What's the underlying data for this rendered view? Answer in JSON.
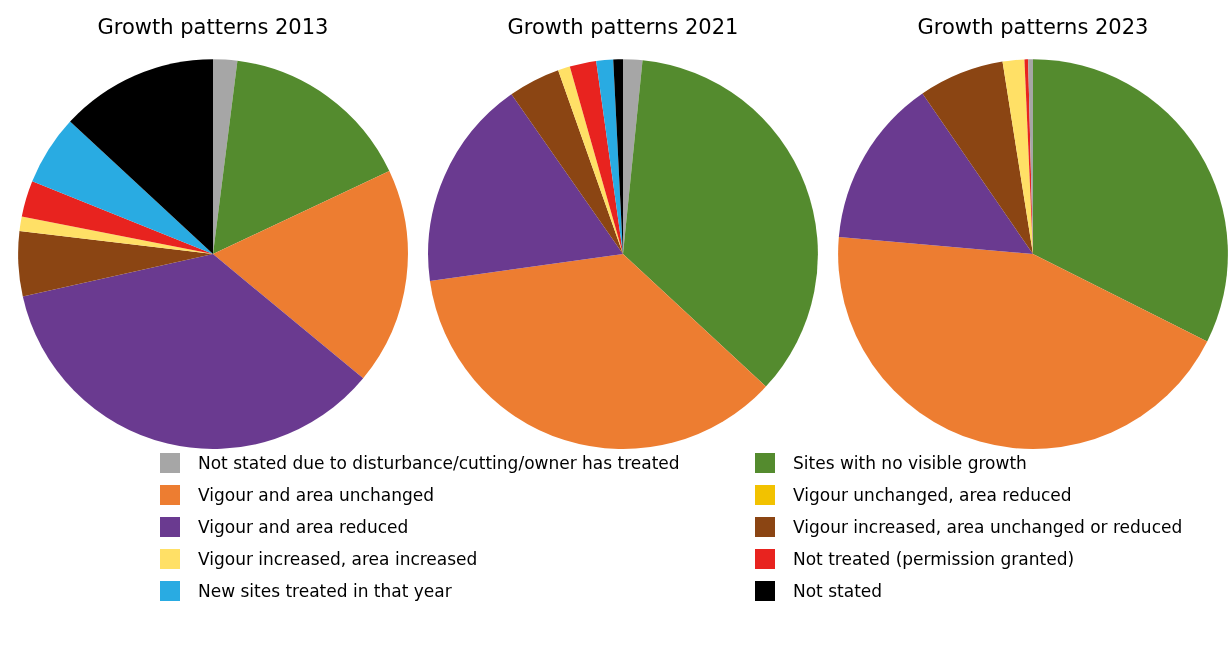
{
  "chart_data": [
    {
      "type": "pie",
      "title": "Growth patterns 2013",
      "legend": "bottom",
      "categories": [
        "Not stated due to disturbance/cutting/owner has treated",
        "Sites with no visible growth",
        "Vigour and area unchanged",
        "Vigour unchanged, area reduced",
        "Vigour and area reduced",
        "Vigour increased, area unchanged or reduced",
        "Vigour increased, area increased",
        "Not treated (permission granted)",
        "New sites treated in that year",
        "Not stated"
      ],
      "values": [
        2,
        16,
        18,
        0,
        35.5,
        5.4,
        1.2,
        3,
        5.8,
        13.1
      ],
      "colors": [
        "#a6a6a6",
        "#548b2e",
        "#ed7d31",
        "#f2c200",
        "#6a3a90",
        "#8b4513",
        "#ffe066",
        "#e8231f",
        "#29abe2",
        "#000000"
      ]
    },
    {
      "type": "pie",
      "title": "Growth patterns 2021",
      "categories": [
        null,
        null,
        null,
        null,
        null,
        null,
        null,
        null,
        null
      ],
      "values": [
        1.6,
        35.3,
        35.9,
        17.5,
        4.3,
        1,
        2.2,
        1.4,
        0.8
      ],
      "colors": [
        "#a6a6a6",
        "#548b2e",
        "#ed7d31",
        "#6a3a90",
        "#8b4513",
        "#ffe066",
        "#e8231f",
        "#29abe2",
        "#000000"
      ]
    },
    {
      "type": "pie",
      "title": "Growth patterns 2023",
      "categories": [
        null,
        null,
        null,
        null,
        null,
        null,
        null
      ],
      "values": [
        32.4,
        44,
        14,
        7.1,
        1.8,
        0.3,
        0.4
      ],
      "colors": [
        "#548b2e",
        "#ed7d31",
        "#6a3a90",
        "#8b4513",
        "#ffe066",
        "#e8231f",
        "#a6a6a6"
      ]
    }
  ]
}
